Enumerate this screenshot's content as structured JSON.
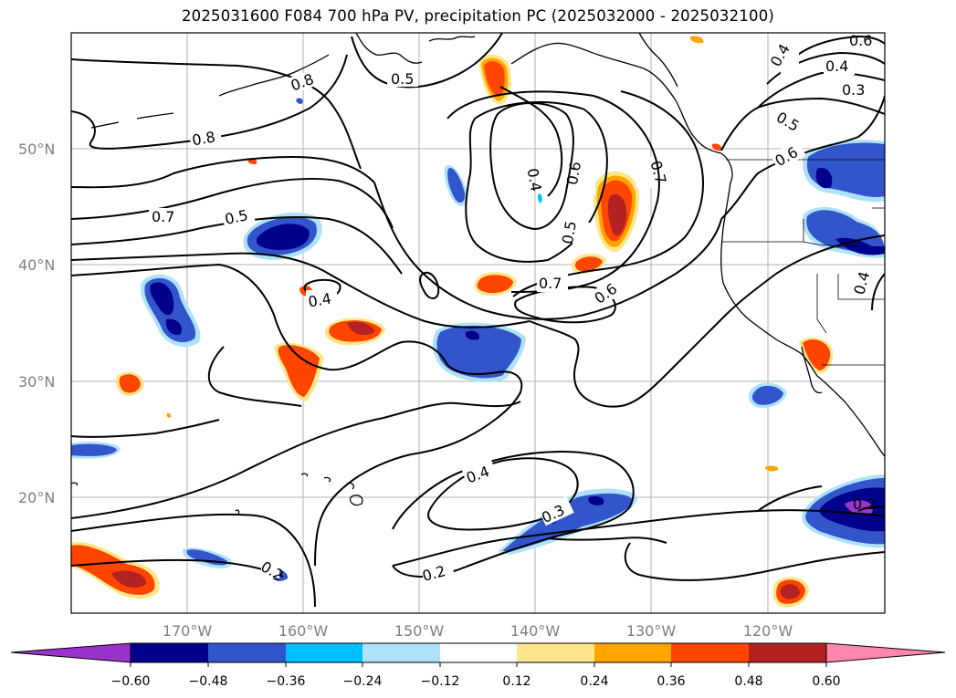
{
  "title": "2025031600 F084 700 hPa PV, precipitation PC (2025032000 - 2025032100)",
  "colors": {
    "neg_060_below": "#9933cc",
    "neg_060_048": "#00008b",
    "neg_048_036": "#3355cc",
    "neg_036_024": "#00bfff",
    "neg_024_012": "#aee2fa",
    "neutral": "#ffffff",
    "pos_012_024": "#fde68a",
    "pos_024_036": "#ffa500",
    "pos_036_048": "#ff4500",
    "pos_048_060": "#b22222",
    "pos_060_above": "#ff88aa",
    "contour": "#000000",
    "grid": "#b0b0b0",
    "coast": "#000000"
  },
  "map": {
    "lat_labels": [
      "20°N",
      "30°N",
      "40°N",
      "50°N"
    ],
    "lon_labels": [
      "170°W",
      "160°W",
      "150°W",
      "140°W",
      "130°W",
      "120°W"
    ],
    "contour_labels": [
      "0.5",
      "0.8",
      "0.8",
      "0.7",
      "0.5",
      "0.4",
      "0.4",
      "0.6",
      "0.7",
      "0.5",
      "0.7",
      "0.6",
      "0.5",
      "0.6",
      "0.4",
      "0.3",
      "0.4",
      "0.3",
      "0.2",
      "0.2",
      "0.4",
      "0.6"
    ]
  },
  "colorbar": {
    "tick_labels": [
      "−0.60",
      "−0.48",
      "−0.36",
      "−0.24",
      "−0.12",
      "0.12",
      "0.24",
      "0.36",
      "0.48",
      "0.60"
    ]
  }
}
